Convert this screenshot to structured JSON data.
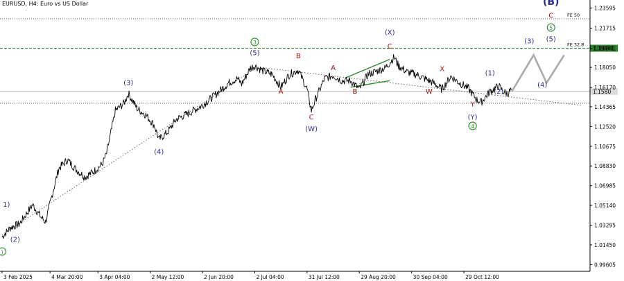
{
  "window": {
    "title": "EURUSD, H4:  Euro vs US Dollar"
  },
  "colors": {
    "background": "#ffffff",
    "price": "#000000",
    "grid": "#c8c8c8",
    "navy": "#2b2b8c",
    "darkred": "#a01010",
    "green": "#2e8b2e",
    "projection": "#aaaaaa",
    "fe_level": "#2e7d2e"
  },
  "chart_data": {
    "type": "line",
    "title": "EURUSD, H4:  Euro vs US Dollar",
    "y_ticks": [
      "1.23595",
      "1.21715",
      "1.19841",
      "1.18050",
      "1.16170",
      "1.14365",
      "1.12520",
      "1.10675",
      "1.08830",
      "1.06985",
      "1.05140",
      "1.03295",
      "1.01450",
      "0.99605"
    ],
    "ylim": [
      0.9898,
      1.2435
    ],
    "x_ticks": [
      "3 Feb 2025",
      "4 Mar 20:00",
      "3 Apr 04:00",
      "2 May 12:00",
      "2 Jun 20:00",
      "2 Jul 04:00",
      "31 Jul 12:00",
      "29 Aug 20:00",
      "30 Sep 04:00",
      "29 Oct 12:00"
    ],
    "x_tick_index": [
      0,
      11,
      22,
      34,
      46,
      58,
      70,
      82,
      94,
      106
    ],
    "x_span": 134,
    "close_path": [
      [
        0,
        1.022
      ],
      [
        2,
        1.031
      ],
      [
        4,
        1.034
      ],
      [
        7,
        1.052
      ],
      [
        9,
        1.04
      ],
      [
        10,
        1.036
      ],
      [
        11,
        1.053
      ],
      [
        13,
        1.086
      ],
      [
        15,
        1.094
      ],
      [
        17,
        1.085
      ],
      [
        19,
        1.078
      ],
      [
        21,
        1.083
      ],
      [
        23,
        1.09
      ],
      [
        24,
        1.1
      ],
      [
        26,
        1.14
      ],
      [
        28,
        1.147
      ],
      [
        29,
        1.156
      ],
      [
        31,
        1.142
      ],
      [
        33,
        1.136
      ],
      [
        35,
        1.126
      ],
      [
        36,
        1.113
      ],
      [
        38,
        1.12
      ],
      [
        40,
        1.132
      ],
      [
        43,
        1.138
      ],
      [
        46,
        1.145
      ],
      [
        49,
        1.155
      ],
      [
        52,
        1.166
      ],
      [
        54,
        1.17
      ],
      [
        55,
        1.165
      ],
      [
        57,
        1.18
      ],
      [
        58,
        1.182
      ],
      [
        60,
        1.177
      ],
      [
        62,
        1.174
      ],
      [
        64,
        1.162
      ],
      [
        66,
        1.174
      ],
      [
        68,
        1.178
      ],
      [
        70,
        1.16
      ],
      [
        71,
        1.14
      ],
      [
        72,
        1.151
      ],
      [
        74,
        1.17
      ],
      [
        76,
        1.173
      ],
      [
        78,
        1.168
      ],
      [
        80,
        1.168
      ],
      [
        82,
        1.16
      ],
      [
        84,
        1.174
      ],
      [
        86,
        1.177
      ],
      [
        88,
        1.18
      ],
      [
        90,
        1.19
      ],
      [
        91,
        1.182
      ],
      [
        93,
        1.176
      ],
      [
        95,
        1.174
      ],
      [
        97,
        1.17
      ],
      [
        99,
        1.166
      ],
      [
        101,
        1.16
      ],
      [
        103,
        1.172
      ],
      [
        105,
        1.166
      ],
      [
        107,
        1.161
      ],
      [
        109,
        1.15
      ],
      [
        110,
        1.148
      ],
      [
        112,
        1.158
      ],
      [
        114,
        1.163
      ],
      [
        115,
        1.158
      ],
      [
        116,
        1.156
      ],
      [
        117,
        1.16
      ]
    ],
    "projection": [
      [
        117,
        1.158
      ],
      [
        122,
        1.192
      ],
      [
        125,
        1.166
      ],
      [
        129,
        1.192
      ]
    ],
    "trendlines": [
      {
        "from": [
          0,
          1.024
        ],
        "to": [
          58,
          1.179
        ],
        "style": "dotted"
      },
      {
        "from": [
          58,
          1.181
        ],
        "to": [
          133,
          1.145
        ],
        "style": "dotted"
      },
      {
        "from": [
          79,
          1.171
        ],
        "to": [
          89,
          1.188
        ],
        "style": "solid"
      },
      {
        "from": [
          80,
          1.162
        ],
        "to": [
          89,
          1.168
        ],
        "style": "solid"
      }
    ],
    "levels": [
      {
        "name": "FE 50",
        "value": 1.226,
        "style": "dotted",
        "label": "FE 50"
      },
      {
        "name": "FE 32.8",
        "value": 1.1984,
        "style": "dashed",
        "label": "FE 32.8",
        "price_label": "1.19841"
      },
      {
        "name": "support",
        "value": 1.147,
        "style": "dotted"
      },
      {
        "name": "current",
        "value": 1.158,
        "style": "solid",
        "price_label": "1.1580"
      }
    ],
    "wave_labels": [
      {
        "text": "1)",
        "x": 1,
        "y": 1.05,
        "color": "navy"
      },
      {
        "text": "(2)",
        "x": 3,
        "y": 1.0175,
        "color": "navy"
      },
      {
        "text": "(3)",
        "x": 29,
        "y": 1.164,
        "color": "navy"
      },
      {
        "text": "(4)",
        "x": 36,
        "y": 1.0995,
        "color": "navy"
      },
      {
        "text": "(5)",
        "x": 58,
        "y": 1.192,
        "color": "navy"
      },
      {
        "text": "3",
        "x": 58,
        "y": 1.202,
        "color": "green",
        "circled": true
      },
      {
        "text": "B",
        "x": 68,
        "y": 1.189,
        "color": "darkred"
      },
      {
        "text": "A",
        "x": 64,
        "y": 1.156,
        "color": "darkred"
      },
      {
        "text": "C",
        "x": 71,
        "y": 1.132,
        "color": "darkred"
      },
      {
        "text": "(W)",
        "x": 71,
        "y": 1.121,
        "color": "navy"
      },
      {
        "text": "A",
        "x": 76,
        "y": 1.178,
        "color": "darkred"
      },
      {
        "text": "B",
        "x": 81,
        "y": 1.156,
        "color": "darkred"
      },
      {
        "text": "(X)",
        "x": 89,
        "y": 1.211,
        "color": "navy"
      },
      {
        "text": "C",
        "x": 89,
        "y": 1.198,
        "color": "darkred"
      },
      {
        "text": "X",
        "x": 101,
        "y": 1.177,
        "color": "darkred"
      },
      {
        "text": "W",
        "x": 98,
        "y": 1.156,
        "color": "darkred"
      },
      {
        "text": "(1)",
        "x": 112,
        "y": 1.173,
        "color": "navy"
      },
      {
        "text": "(2)",
        "x": 114,
        "y": 1.156,
        "color": "navy"
      },
      {
        "text": "Y",
        "x": 108,
        "y": 1.144,
        "color": "darkred"
      },
      {
        "text": "(Y)",
        "x": 108,
        "y": 1.132,
        "color": "navy"
      },
      {
        "text": "4",
        "x": 108,
        "y": 1.1235,
        "color": "green",
        "circled": true
      },
      {
        "text": "(3)",
        "x": 121,
        "y": 1.203,
        "color": "navy"
      },
      {
        "text": "(4)",
        "x": 124,
        "y": 1.162,
        "color": "navy"
      },
      {
        "text": "(5)",
        "x": 126,
        "y": 1.205,
        "color": "navy"
      },
      {
        "text": "5",
        "x": 126,
        "y": 1.2155,
        "color": "green",
        "circled": true
      },
      {
        "text": "C",
        "x": 126,
        "y": 1.227,
        "color": "darkred"
      },
      {
        "text": "(B)",
        "x": 126,
        "y": 1.239,
        "color": "navy",
        "large": true
      },
      {
        "text": ")",
        "x": 0,
        "y": 1.006,
        "color": "green",
        "circled": true
      }
    ]
  }
}
